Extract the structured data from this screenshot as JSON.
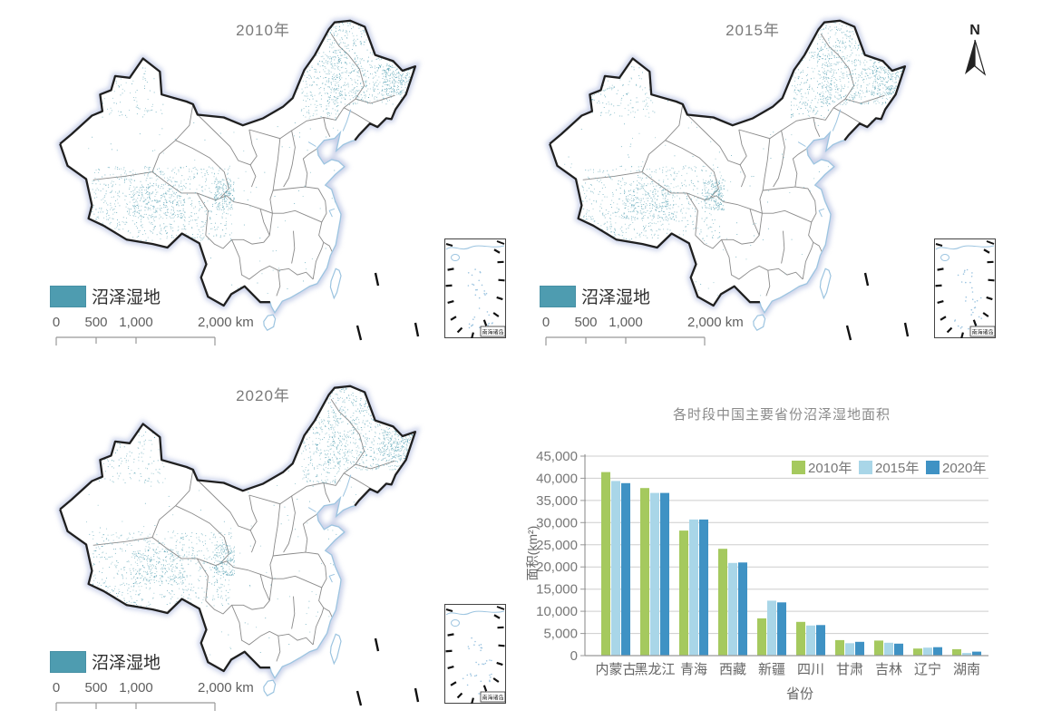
{
  "maps": [
    {
      "title": "2010年"
    },
    {
      "title": "2015年"
    },
    {
      "title": "2020年"
    }
  ],
  "wetland_legend": {
    "label": "沼泽湿地",
    "swatch_color": "#4e9cb0"
  },
  "scalebar": {
    "labels": [
      "0",
      "500",
      "1,000",
      "2,000 km"
    ]
  },
  "inset": {
    "label": "南海诸岛"
  },
  "north": {
    "label": "N"
  },
  "colors": {
    "border": "#1f1f1f",
    "glow": "#98a6d4",
    "province": "#8a8a8a",
    "coast": "#9cc4e0",
    "wetland_dot": "#4e9cb0",
    "wetland_dot_light": "#7ab6c3"
  },
  "chart_data": {
    "type": "bar",
    "title": "各时段中国主要省份沼泽湿地面积",
    "xlabel": "省份",
    "ylabel": "面积(km²)",
    "ylim": [
      0,
      45000
    ],
    "ytick_step": 5000,
    "grid": true,
    "legend_position": "top-right-inside",
    "categories": [
      "内蒙古",
      "黑龙江",
      "青海",
      "西藏",
      "新疆",
      "四川",
      "甘肃",
      "吉林",
      "辽宁",
      "湖南"
    ],
    "series": [
      {
        "name": "2010年",
        "color": "#a5c95e",
        "values": [
          41400,
          37800,
          28200,
          24100,
          8400,
          7600,
          3500,
          3400,
          1600,
          1450
        ]
      },
      {
        "name": "2015年",
        "color": "#a9d6e8",
        "values": [
          39400,
          36700,
          30700,
          20900,
          12400,
          6800,
          2800,
          2900,
          1800,
          600
        ]
      },
      {
        "name": "2020年",
        "color": "#3f92c4",
        "values": [
          38900,
          36700,
          30700,
          21000,
          12000,
          6900,
          3100,
          2700,
          1900,
          900
        ]
      }
    ]
  }
}
